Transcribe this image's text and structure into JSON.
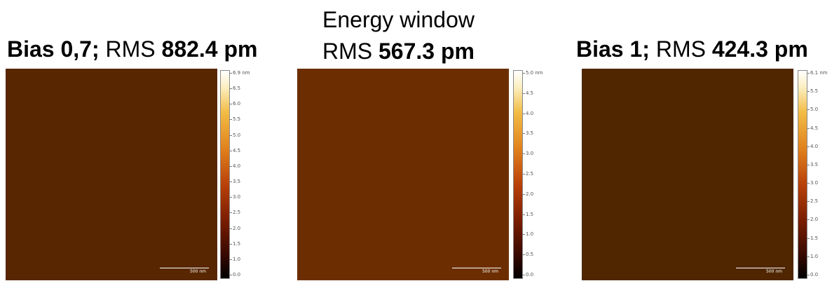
{
  "panels": [
    {
      "title_line1": "",
      "label_bold": "Bias 0,7;",
      "rms_prefix": "RMS",
      "rms_value": "882.4 pm",
      "scale_top": "6.9 nm",
      "ticks": [
        "6.5",
        "6.0",
        "5.5",
        "5.0",
        "4.5",
        "4.0",
        "3.5",
        "3.0",
        "2.5",
        "2.0",
        "1.5",
        "1.0",
        "0.0"
      ],
      "scalebar": "500 nm"
    },
    {
      "title_line1": "Energy window",
      "label_bold": "",
      "rms_prefix": "RMS",
      "rms_value": "567.3 pm",
      "scale_top": "5.0 nm",
      "ticks": [
        "4.5",
        "4.0",
        "3.5",
        "3.0",
        "2.5",
        "2.0",
        "1.5",
        "1.0",
        "0.5",
        "0.0"
      ],
      "scalebar": "500 nm"
    },
    {
      "title_line1": "",
      "label_bold": "Bias 1;",
      "rms_prefix": "RMS",
      "rms_value": "424.3 pm",
      "scale_top": "6.1 nm",
      "ticks": [
        "5.5",
        "5.0",
        "4.5",
        "4.0",
        "3.5",
        "3.0",
        "2.5",
        "2.0",
        "1.5",
        "1.0",
        "0.0"
      ],
      "scalebar": "500 nm"
    }
  ],
  "colors": {
    "afm_dark": "#1a0500",
    "afm_mid": "#c0440c",
    "afm_bright": "#fff4c8"
  }
}
